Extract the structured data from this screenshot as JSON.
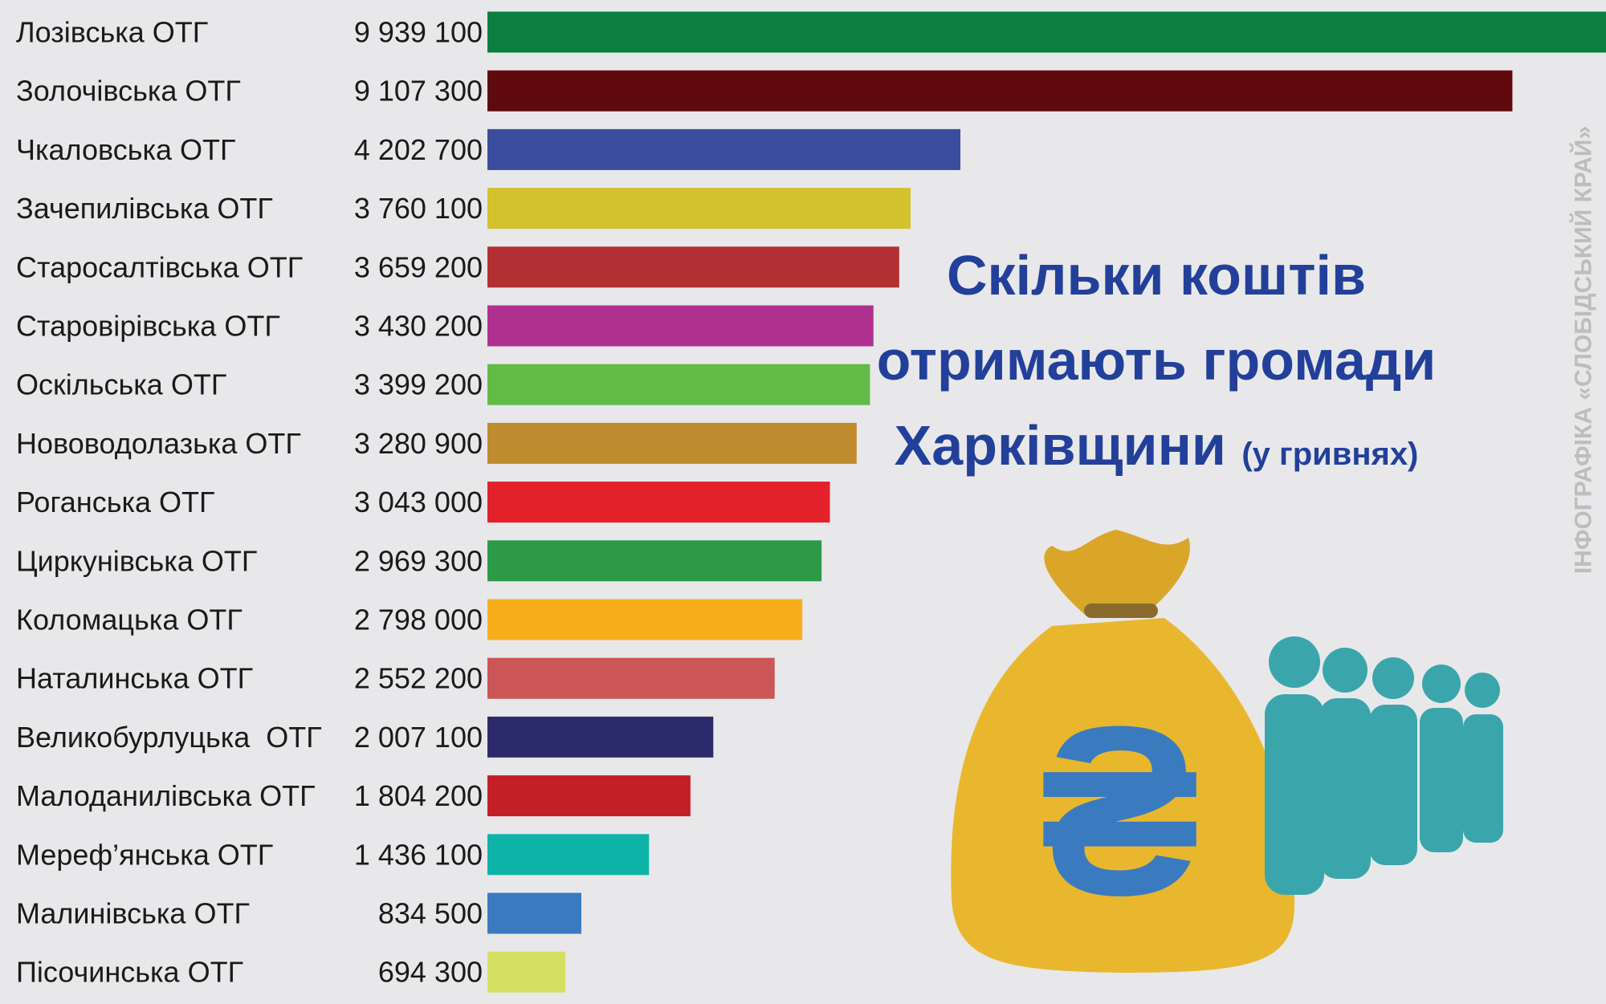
{
  "chart_data": {
    "type": "bar",
    "title": "Скільки коштів отримають громади Харківщини",
    "subtitle": "(у гривнях)",
    "credit": "ІНФОГРАФІКА «СЛОБІДСЬКИЙ КРАЙ»",
    "categories": [
      "Лозівська ОТГ",
      "Золочівська ОТГ",
      "Чкаловська ОТГ",
      "Зачепилівська ОТГ",
      "Старосалтівська ОТГ",
      "Старовірівська ОТГ",
      "Оскільська ОТГ",
      "Нововодолазька ОТГ",
      "Роганська ОТГ",
      "Циркунівська ОТГ",
      "Коломацька ОТГ",
      "Наталинська ОТГ",
      "Великобурлуцька  ОТГ",
      "Малоданилівська ОТГ",
      "Мереф’янська ОТГ",
      "Малинівська ОТГ",
      "Пісочинська ОТГ"
    ],
    "values": [
      9939100,
      9107300,
      4202700,
      3760100,
      3659200,
      3430200,
      3399200,
      3280900,
      3043000,
      2969300,
      2798000,
      2552200,
      2007100,
      1804200,
      1436100,
      834500,
      694300
    ],
    "value_labels": [
      "9 939 100",
      "9 107 300",
      "4 202 700",
      "3 760 100",
      "3 659 200",
      "3 430 200",
      "3 399 200",
      "3 280 900",
      "3 043 000",
      "2 969 300",
      "2 798 000",
      "2 552 200",
      "2 007 100",
      "1 804 200",
      "1 436 100",
      "834 500",
      "694 300"
    ],
    "colors": [
      "#0a7f3f",
      "#600a10",
      "#3b4d9f",
      "#d4c12e",
      "#b23033",
      "#b03090",
      "#62bb46",
      "#c08b2f",
      "#e2212a",
      "#2d9a48",
      "#f8ae1c",
      "#cc5555",
      "#2b2b6b",
      "#c22026",
      "#0db3a7",
      "#3a7bc0",
      "#d5e063"
    ]
  }
}
